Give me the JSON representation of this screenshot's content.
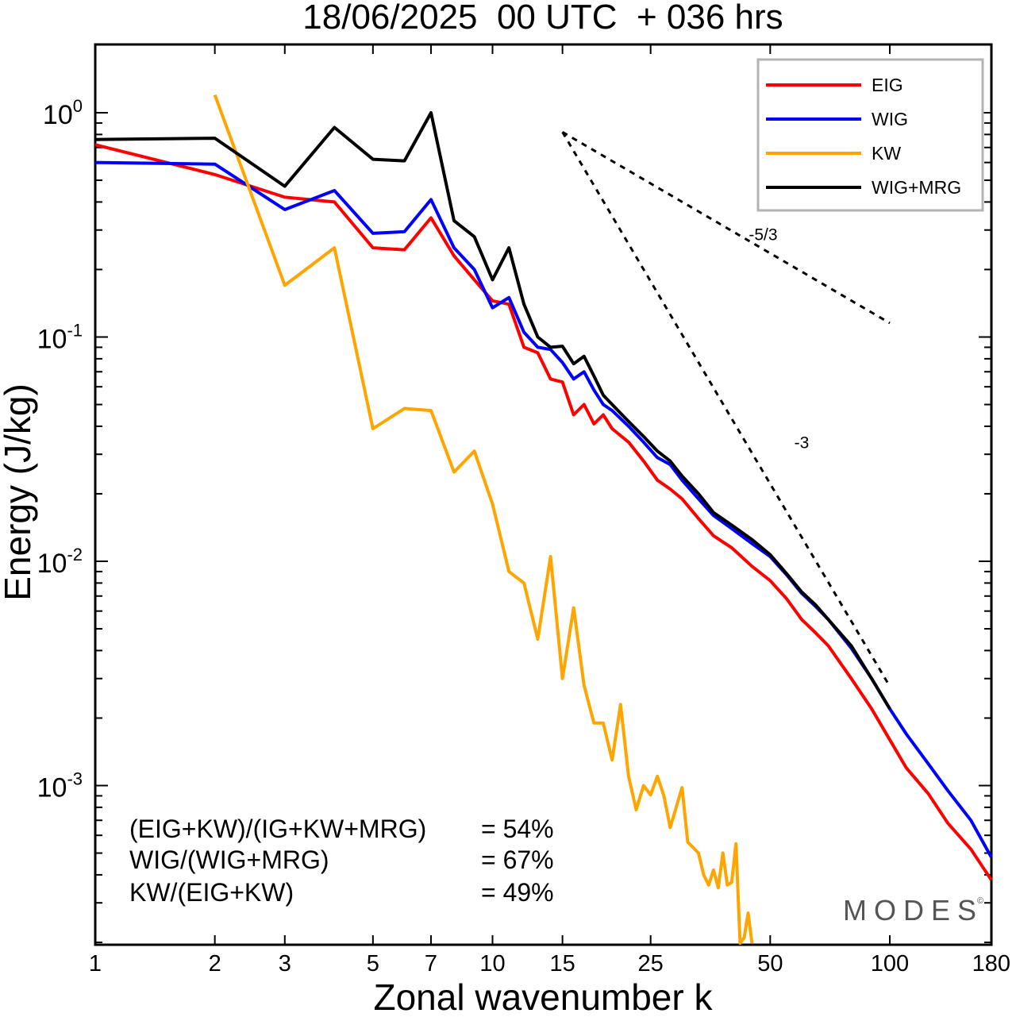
{
  "chart_data": {
    "type": "line",
    "title": "18/06/2025  00 UTC  + 036 hrs",
    "xlabel": "Zonal wavenumber k",
    "ylabel": "Energy (J/kg)",
    "xscale": "log",
    "yscale": "log",
    "xlim": [
      1,
      180
    ],
    "ylim": [
      0.0002,
      2.0
    ],
    "x_ticks": [
      "1",
      "2",
      "3",
      "5",
      "7",
      "10",
      "15",
      "25",
      "50",
      "100",
      "180"
    ],
    "x_tick_values": [
      1,
      2,
      3,
      5,
      7,
      10,
      15,
      25,
      50,
      100,
      180
    ],
    "y_ticks": [
      {
        "base": "10",
        "exp": "0",
        "value": 1
      },
      {
        "base": "10",
        "exp": "-1",
        "value": 0.1
      },
      {
        "base": "10",
        "exp": "-2",
        "value": 0.01
      },
      {
        "base": "10",
        "exp": "-3",
        "value": 0.001
      }
    ],
    "legend_position": "top-right",
    "series": [
      {
        "name": "EIG",
        "color": "#ff0000",
        "points": [
          [
            1,
            0.72
          ],
          [
            2,
            0.53
          ],
          [
            3,
            0.42
          ],
          [
            4,
            0.4
          ],
          [
            5,
            0.25
          ],
          [
            6,
            0.245
          ],
          [
            7,
            0.34
          ],
          [
            8,
            0.23
          ],
          [
            9,
            0.18
          ],
          [
            10,
            0.145
          ],
          [
            11,
            0.14
          ],
          [
            12,
            0.09
          ],
          [
            13,
            0.085
          ],
          [
            14,
            0.065
          ],
          [
            15,
            0.063
          ],
          [
            16,
            0.045
          ],
          [
            17,
            0.05
          ],
          [
            18,
            0.041
          ],
          [
            19,
            0.045
          ],
          [
            20,
            0.039
          ],
          [
            22,
            0.034
          ],
          [
            24,
            0.028
          ],
          [
            26,
            0.023
          ],
          [
            28,
            0.021
          ],
          [
            30,
            0.019
          ],
          [
            33,
            0.0155
          ],
          [
            36,
            0.013
          ],
          [
            40,
            0.0115
          ],
          [
            45,
            0.0095
          ],
          [
            50,
            0.0082
          ],
          [
            55,
            0.0068
          ],
          [
            60,
            0.0055
          ],
          [
            65,
            0.0048
          ],
          [
            70,
            0.0042
          ],
          [
            80,
            0.003
          ],
          [
            90,
            0.0022
          ],
          [
            100,
            0.0016
          ],
          [
            110,
            0.0012
          ],
          [
            125,
            0.00092
          ],
          [
            140,
            0.00068
          ],
          [
            160,
            0.00052
          ],
          [
            180,
            0.00038
          ]
        ]
      },
      {
        "name": "WIG",
        "color": "#0000ff",
        "points": [
          [
            1,
            0.6
          ],
          [
            2,
            0.59
          ],
          [
            3,
            0.37
          ],
          [
            4,
            0.45
          ],
          [
            5,
            0.29
          ],
          [
            6,
            0.295
          ],
          [
            7,
            0.41
          ],
          [
            8,
            0.25
          ],
          [
            9,
            0.2
          ],
          [
            10,
            0.135
          ],
          [
            11,
            0.15
          ],
          [
            12,
            0.105
          ],
          [
            13,
            0.09
          ],
          [
            14,
            0.088
          ],
          [
            15,
            0.077
          ],
          [
            16,
            0.065
          ],
          [
            17,
            0.07
          ],
          [
            18,
            0.058
          ],
          [
            19,
            0.05
          ],
          [
            20,
            0.047
          ],
          [
            22,
            0.04
          ],
          [
            24,
            0.034
          ],
          [
            26,
            0.029
          ],
          [
            28,
            0.027
          ],
          [
            30,
            0.023
          ],
          [
            33,
            0.019
          ],
          [
            36,
            0.016
          ],
          [
            40,
            0.014
          ],
          [
            45,
            0.012
          ],
          [
            50,
            0.0105
          ],
          [
            55,
            0.0087
          ],
          [
            60,
            0.0072
          ],
          [
            65,
            0.0063
          ],
          [
            70,
            0.0055
          ],
          [
            80,
            0.0041
          ],
          [
            90,
            0.003
          ],
          [
            100,
            0.0022
          ],
          [
            110,
            0.0017
          ],
          [
            125,
            0.00125
          ],
          [
            140,
            0.00095
          ],
          [
            160,
            0.0007
          ],
          [
            180,
            0.00048
          ]
        ]
      },
      {
        "name": "KW",
        "color": "#ffa500",
        "points": [
          [
            2,
            1.2
          ],
          [
            3,
            0.17
          ],
          [
            4,
            0.25
          ],
          [
            5,
            0.039
          ],
          [
            6,
            0.048
          ],
          [
            7,
            0.047
          ],
          [
            8,
            0.025
          ],
          [
            9,
            0.031
          ],
          [
            10,
            0.018
          ],
          [
            11,
            0.009
          ],
          [
            12,
            0.008
          ],
          [
            13,
            0.0045
          ],
          [
            14,
            0.0105
          ],
          [
            15,
            0.003
          ],
          [
            16,
            0.0062
          ],
          [
            17,
            0.0028
          ],
          [
            18,
            0.0019
          ],
          [
            19,
            0.0019
          ],
          [
            20,
            0.0013
          ],
          [
            21,
            0.0023
          ],
          [
            22,
            0.0011
          ],
          [
            23,
            0.00078
          ],
          [
            24,
            0.001
          ],
          [
            25,
            0.00091
          ],
          [
            26,
            0.0011
          ],
          [
            27,
            0.0009
          ],
          [
            28,
            0.00065
          ],
          [
            29,
            0.0008
          ],
          [
            30,
            0.00098
          ],
          [
            31,
            0.00056
          ],
          [
            33,
            0.0005
          ],
          [
            34,
            0.0004
          ],
          [
            35,
            0.00036
          ],
          [
            36,
            0.00042
          ],
          [
            37,
            0.00035
          ],
          [
            38,
            0.0005
          ],
          [
            39,
            0.00036
          ],
          [
            40,
            0.00037
          ],
          [
            41,
            0.00055
          ],
          [
            42,
            0.00019
          ],
          [
            43,
            0.00021
          ],
          [
            44,
            0.00027
          ],
          [
            45,
            0.00019
          ]
        ]
      },
      {
        "name": "WIG+MRG",
        "color": "#000000",
        "points": [
          [
            1,
            0.76
          ],
          [
            2,
            0.77
          ],
          [
            3,
            0.47
          ],
          [
            4,
            0.86
          ],
          [
            5,
            0.62
          ],
          [
            6,
            0.61
          ],
          [
            7,
            1.0
          ],
          [
            8,
            0.33
          ],
          [
            9,
            0.28
          ],
          [
            10,
            0.18
          ],
          [
            11,
            0.25
          ],
          [
            12,
            0.14
          ],
          [
            13,
            0.1
          ],
          [
            14,
            0.09
          ],
          [
            15,
            0.091
          ],
          [
            16,
            0.076
          ],
          [
            17,
            0.082
          ],
          [
            18,
            0.067
          ],
          [
            19,
            0.055
          ],
          [
            20,
            0.05
          ],
          [
            22,
            0.042
          ],
          [
            24,
            0.036
          ],
          [
            26,
            0.031
          ],
          [
            28,
            0.028
          ],
          [
            30,
            0.024
          ],
          [
            33,
            0.02
          ],
          [
            36,
            0.0165
          ],
          [
            40,
            0.0145
          ],
          [
            45,
            0.0125
          ],
          [
            50,
            0.0107
          ],
          [
            55,
            0.0088
          ],
          [
            60,
            0.0073
          ],
          [
            65,
            0.0064
          ],
          [
            70,
            0.0055
          ],
          [
            80,
            0.0042
          ],
          [
            90,
            0.003
          ],
          [
            100,
            0.0022
          ]
        ]
      }
    ],
    "reference_lines": [
      {
        "label": "-5/3",
        "slope": -1.6667,
        "x": [
          15,
          100
        ],
        "y": [
          0.82,
          0.1154
        ],
        "label_at": [
          48,
          0.27
        ]
      },
      {
        "label": "-3",
        "slope": -3,
        "x": [
          15,
          100
        ],
        "y": [
          0.82,
          0.002768
        ],
        "label_at": [
          60,
          0.032
        ]
      }
    ],
    "annotations": [
      {
        "label": "(EIG+KW)/(IG+KW+MRG)",
        "value": "= 54%"
      },
      {
        "label": "WIG/(WIG+MRG)",
        "value": "= 67%"
      },
      {
        "label": "KW/(EIG+KW)",
        "value": "= 49%"
      }
    ],
    "watermark": "MODES"
  }
}
